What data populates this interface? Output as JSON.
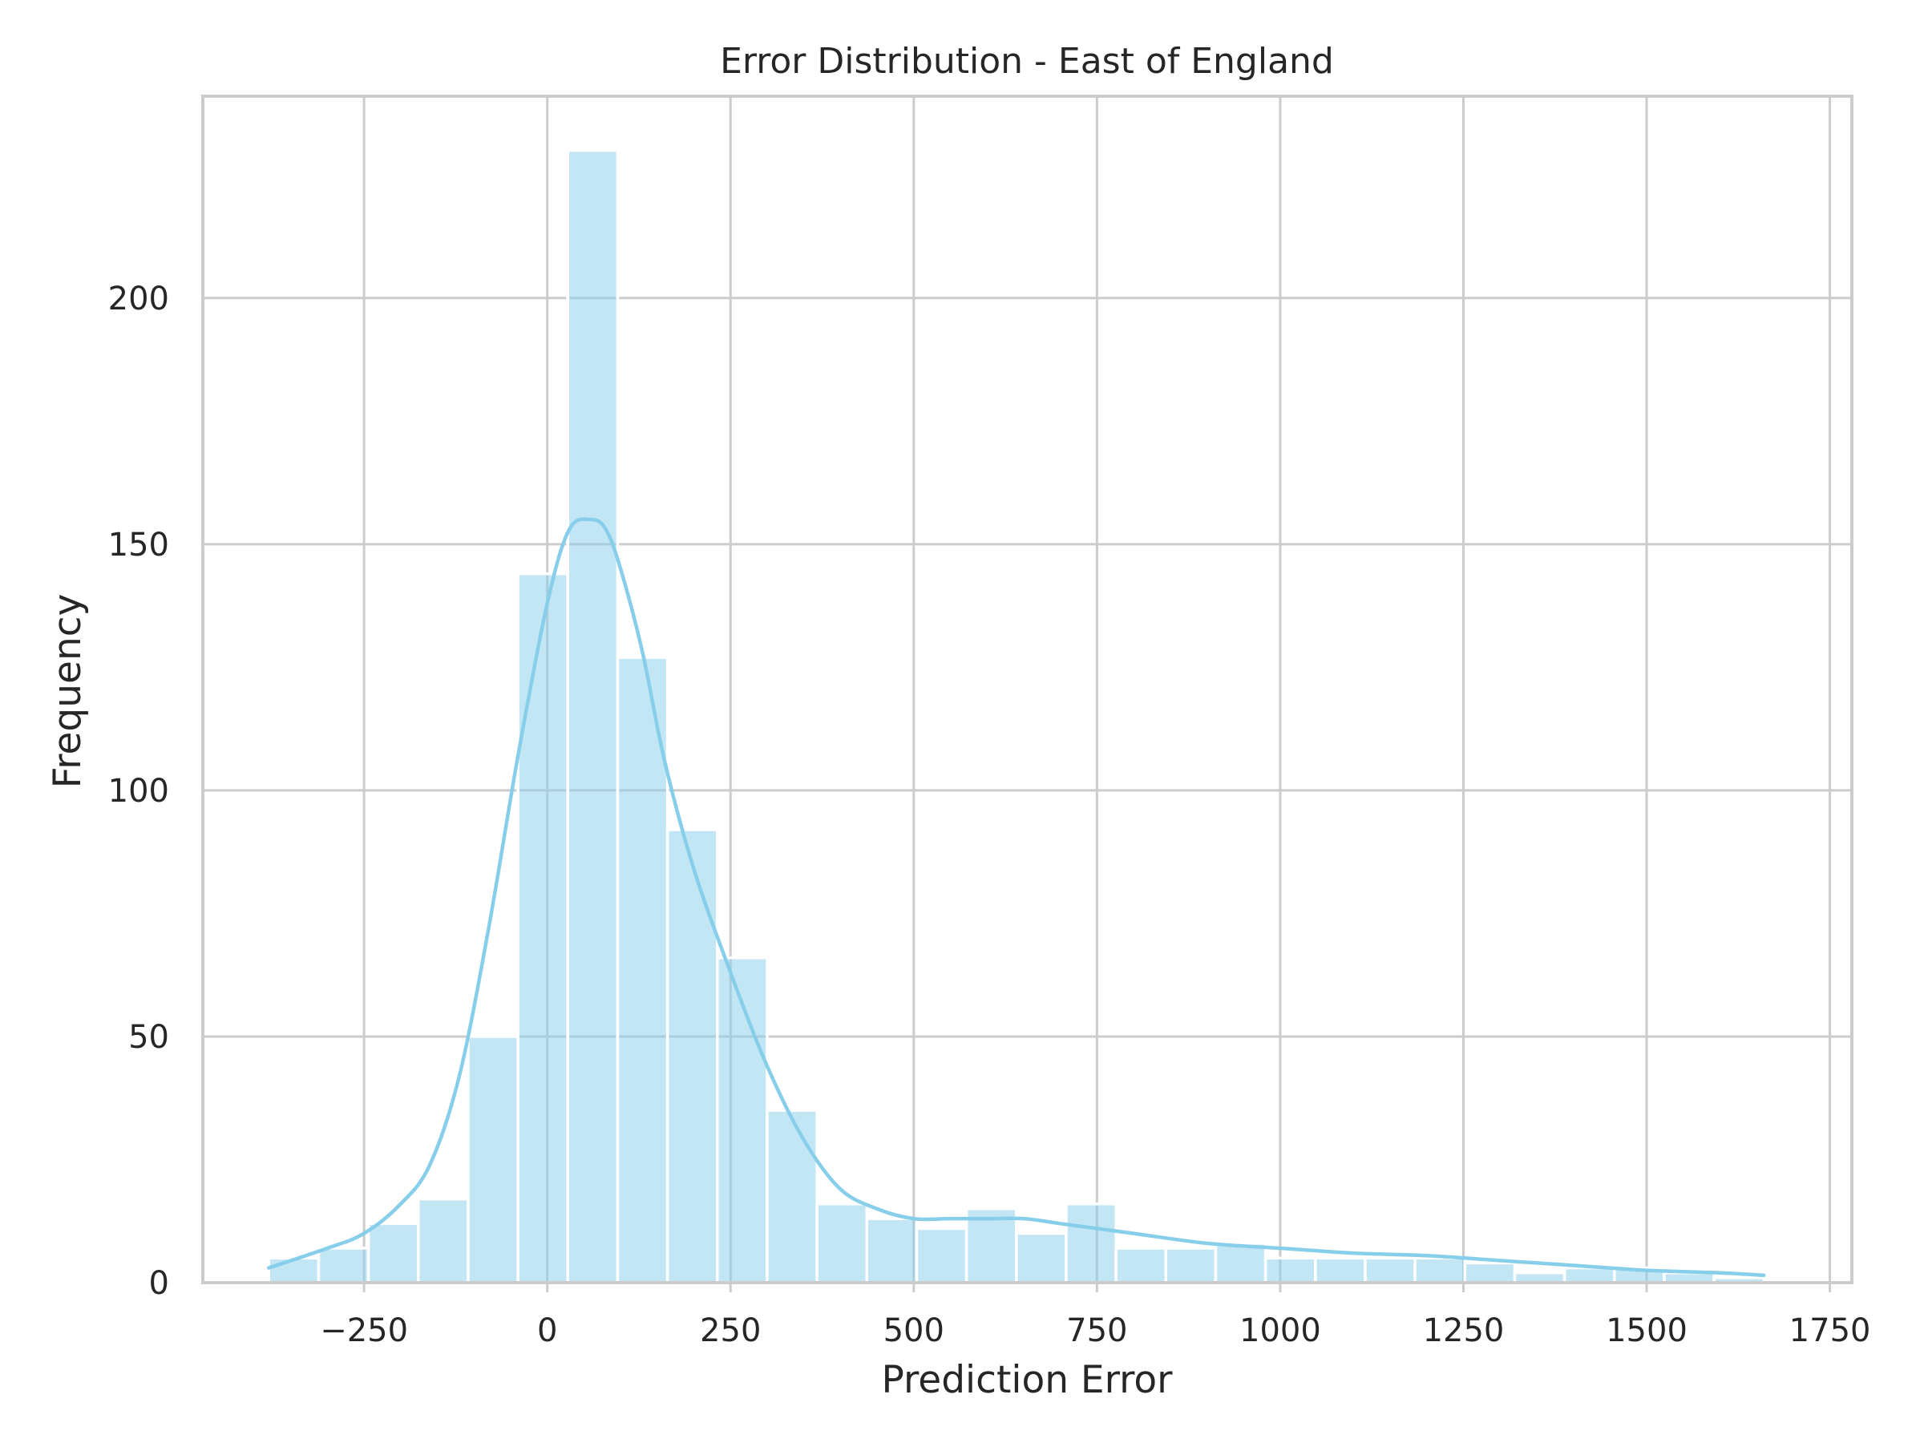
{
  "chart_data": {
    "type": "histogram",
    "title": "Error Distribution - East of England",
    "xlabel": "Prediction Error",
    "ylabel": "Frequency",
    "xlim": [
      -470,
      1780
    ],
    "ylim": [
      0,
      241
    ],
    "xticks": [
      -250,
      0,
      250,
      500,
      750,
      1000,
      1250,
      1500,
      1750
    ],
    "xtick_labels": [
      "−250",
      "0",
      "250",
      "500",
      "750",
      "1000",
      "1250",
      "1500",
      "1750"
    ],
    "yticks": [
      0,
      50,
      100,
      150,
      200
    ],
    "ytick_labels": [
      "0",
      "50",
      "100",
      "150",
      "200"
    ],
    "grid": true,
    "colors": {
      "bar": "#87ceeb",
      "bar_opacity": 0.5,
      "kde": "#87ceeb",
      "grid": "#cccccc",
      "text": "#262626"
    },
    "bins": {
      "edges": [
        -380,
        -312,
        -244,
        -176,
        -108,
        -40,
        28,
        96,
        164,
        232,
        300,
        368,
        436,
        504,
        572,
        640,
        708,
        776,
        844,
        912,
        980,
        1048,
        1116,
        1184,
        1252,
        1320,
        1388,
        1456,
        1524,
        1592,
        1660
      ],
      "counts": [
        5,
        7,
        12,
        17,
        50,
        144,
        230,
        127,
        92,
        66,
        35,
        16,
        13,
        11,
        15,
        10,
        16,
        7,
        7,
        8,
        5,
        5,
        5,
        5,
        4,
        2,
        3,
        3,
        2,
        1
      ]
    },
    "kde": {
      "x": [
        -380,
        -300,
        -250,
        -200,
        -160,
        -120,
        -80,
        -40,
        0,
        30,
        60,
        80,
        100,
        130,
        160,
        200,
        250,
        300,
        350,
        400,
        450,
        500,
        550,
        600,
        650,
        700,
        750,
        800,
        900,
        1000,
        1100,
        1200,
        1300,
        1400,
        1500,
        1600,
        1660
      ],
      "y": [
        3,
        7,
        10,
        16,
        24,
        42,
        72,
        107,
        138,
        153,
        155,
        153,
        145,
        128,
        106,
        84,
        63,
        44,
        29,
        19,
        15,
        13,
        13,
        13,
        13,
        12,
        11,
        10,
        8,
        7,
        6,
        5.5,
        4.5,
        3.5,
        2.5,
        2,
        1.5
      ]
    }
  }
}
